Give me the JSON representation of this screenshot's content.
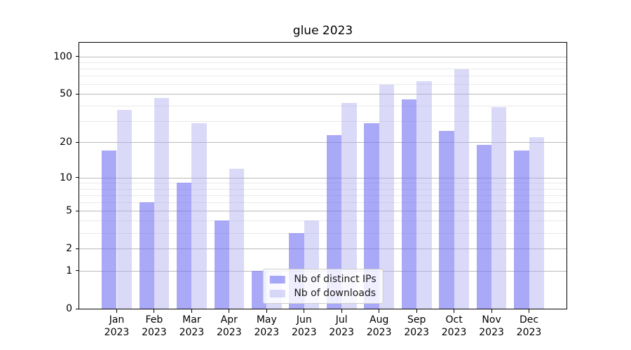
{
  "chart_data": {
    "type": "bar",
    "title": "glue 2023",
    "categories": [
      "Jan",
      "Feb",
      "Mar",
      "Apr",
      "May",
      "Jun",
      "Jul",
      "Aug",
      "Sep",
      "Oct",
      "Nov",
      "Dec"
    ],
    "year_label": "2023",
    "series": [
      {
        "name": "Nb of distinct IPs",
        "color": "rgba(116,116,244,0.62)",
        "values": [
          17,
          6,
          9,
          4,
          1,
          3,
          23,
          29,
          45,
          25,
          19,
          17
        ]
      },
      {
        "name": "Nb of downloads",
        "color": "rgba(173,173,239,0.45)",
        "values": [
          37,
          46,
          29,
          12,
          1,
          4,
          42,
          59,
          63,
          79,
          39,
          22
        ]
      }
    ],
    "xlabel": "",
    "ylabel": "",
    "yscale": "log1p",
    "ylim": [
      0,
      129
    ],
    "yticks": [
      0,
      1,
      2,
      5,
      10,
      20,
      50,
      100
    ],
    "minor_yticks": [
      3,
      4,
      6,
      7,
      8,
      9,
      30,
      40,
      60,
      70,
      80,
      90
    ],
    "grid": "horizontal",
    "legend_position": "lower center",
    "colors": {
      "major_grid": "#bababa",
      "minor_grid": "#e8e8e8",
      "axis": "#000000",
      "dark_bar_on_white": "#a9a9f8",
      "light_bar_on_white": "#dadaf8"
    }
  }
}
